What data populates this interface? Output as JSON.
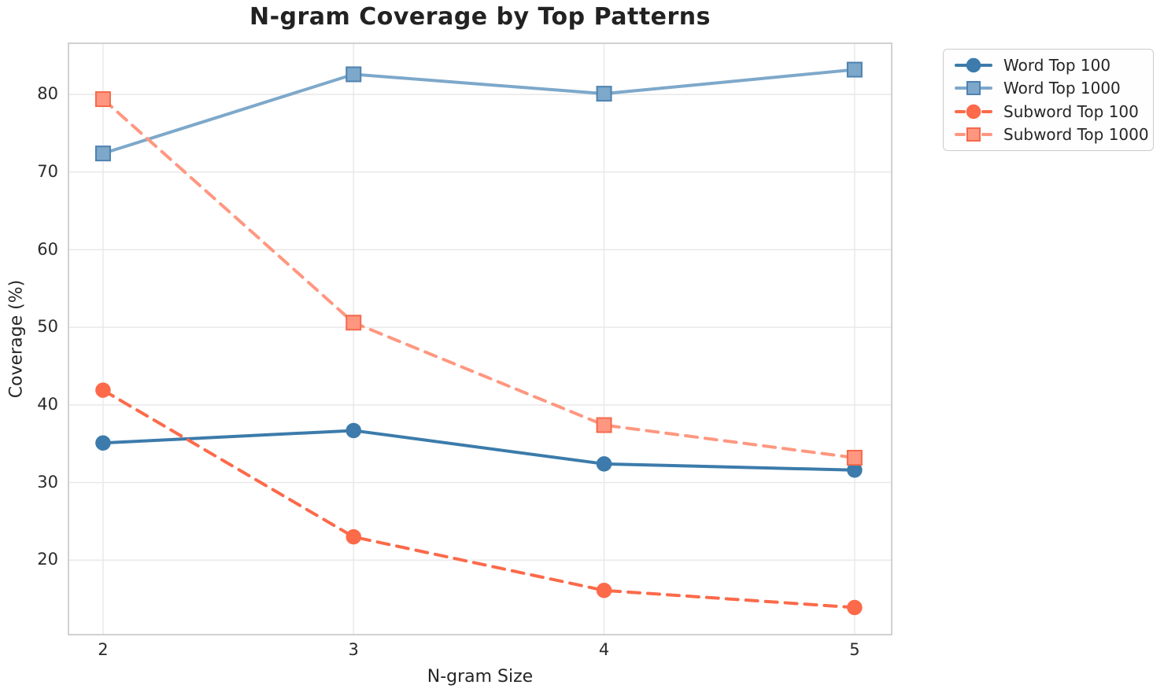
{
  "chart_data": {
    "type": "line",
    "title": "N-gram Coverage by Top Patterns",
    "xlabel": "N-gram Size",
    "ylabel": "Coverage (%)",
    "x": [
      2,
      3,
      4,
      5
    ],
    "xticks": [
      "2",
      "3",
      "4",
      "5"
    ],
    "yticks": [
      20,
      30,
      40,
      50,
      60,
      70,
      80
    ],
    "xlim": [
      1.862,
      5.148
    ],
    "ylim": [
      10.4,
      86.6
    ],
    "grid": true,
    "legend_position": "outside-upper-right",
    "series": [
      {
        "name": "Word Top 100",
        "values": [
          35.1,
          36.7,
          32.4,
          31.6
        ],
        "color": "#3c7bab",
        "edge_color": "#3c7bab",
        "line_style": "solid",
        "marker": "circle"
      },
      {
        "name": "Word Top 1000",
        "values": [
          72.4,
          82.6,
          80.1,
          83.2
        ],
        "color": "#7da8ca",
        "edge_color": "#4e82b0",
        "line_style": "solid",
        "marker": "square"
      },
      {
        "name": "Subword Top 100",
        "values": [
          41.9,
          23.0,
          16.1,
          13.9
        ],
        "color": "#fc6a4a",
        "edge_color": "#fc6a4a",
        "line_style": "dashed",
        "marker": "circle"
      },
      {
        "name": "Subword Top 1000",
        "values": [
          79.4,
          50.6,
          37.4,
          33.2
        ],
        "color": "#ff9780",
        "edge_color": "#f4694b",
        "line_style": "dashed",
        "marker": "square"
      }
    ],
    "colors": {
      "grid": "#e8e8e8",
      "spine": "#cccccc",
      "title_text": "#222222",
      "tick_text": "#2b2b2b",
      "label_text": "#262626",
      "background": "#ffffff"
    }
  }
}
